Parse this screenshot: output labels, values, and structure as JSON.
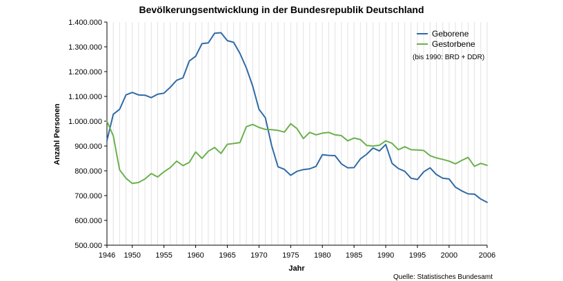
{
  "chart_data": {
    "type": "line",
    "title": "Bevölkerungsentwicklung in der Bundesrepublik Deutschland",
    "xlabel": "Jahr",
    "ylabel": "Anzahl Personen",
    "xlim": [
      1946,
      2006
    ],
    "ylim": [
      500000,
      1400000
    ],
    "x_ticks": [
      "1946",
      "1950",
      "1955",
      "1960",
      "1965",
      "1970",
      "1975",
      "1980",
      "1985",
      "1990",
      "1995",
      "2000",
      "2006"
    ],
    "x_tick_values": [
      1946,
      1950,
      1955,
      1960,
      1965,
      1970,
      1975,
      1980,
      1985,
      1990,
      1995,
      2000,
      2006
    ],
    "y_ticks": [
      "500.000",
      "600.000",
      "700.000",
      "800.000",
      "900.000",
      "1.000.000",
      "1.100.000",
      "1.200.000",
      "1.300.000",
      "1.400.000"
    ],
    "y_tick_values": [
      500000,
      600000,
      700000,
      800000,
      900000,
      1000000,
      1100000,
      1200000,
      1300000,
      1400000
    ],
    "grid": "vertical",
    "legend_position": "top-right",
    "note": "(bis 1990: BRD + DDR)",
    "source": "Quelle: Statistisches Bundesamt",
    "x": [
      1946,
      1947,
      1948,
      1949,
      1950,
      1951,
      1952,
      1953,
      1954,
      1955,
      1956,
      1957,
      1958,
      1959,
      1960,
      1961,
      1962,
      1963,
      1964,
      1965,
      1966,
      1967,
      1968,
      1969,
      1970,
      1971,
      1972,
      1973,
      1974,
      1975,
      1976,
      1977,
      1978,
      1979,
      1980,
      1981,
      1982,
      1983,
      1984,
      1985,
      1986,
      1987,
      1988,
      1989,
      1990,
      1991,
      1992,
      1993,
      1994,
      1995,
      1996,
      1997,
      1998,
      1999,
      2000,
      2001,
      2002,
      2003,
      2004,
      2005,
      2006
    ],
    "series": [
      {
        "name": "Geborene",
        "color": "#2e6aa6",
        "values": [
          922000,
          1028000,
          1048000,
          1106000,
          1116000,
          1106000,
          1105000,
          1095000,
          1109000,
          1113000,
          1137000,
          1165000,
          1175000,
          1243000,
          1262000,
          1313000,
          1316000,
          1355000,
          1357000,
          1325000,
          1318000,
          1273000,
          1215000,
          1142000,
          1048000,
          1014000,
          901000,
          816000,
          806000,
          782000,
          798000,
          805000,
          808000,
          818000,
          865000,
          862000,
          861000,
          828000,
          812000,
          813000,
          848000,
          867000,
          892000,
          880000,
          906000,
          830000,
          809000,
          798000,
          770000,
          765000,
          796000,
          812000,
          785000,
          770000,
          767000,
          734000,
          719000,
          707000,
          706000,
          686000,
          673000
        ]
      },
      {
        "name": "Gestorbene",
        "color": "#6ab04c",
        "values": [
          1000000,
          941000,
          804000,
          770000,
          749000,
          753000,
          767000,
          789000,
          775000,
          796000,
          813000,
          839000,
          821000,
          834000,
          876000,
          850000,
          879000,
          894000,
          870000,
          907000,
          910000,
          914000,
          978000,
          987000,
          975000,
          967000,
          966000,
          963000,
          956000,
          990000,
          970000,
          930000,
          955000,
          945000,
          952000,
          955000,
          945000,
          942000,
          921000,
          932000,
          926000,
          902000,
          900000,
          903000,
          921000,
          911000,
          885000,
          897000,
          885000,
          884000,
          882000,
          861000,
          852000,
          846000,
          839000,
          828000,
          842000,
          854000,
          818000,
          830000,
          822000
        ]
      }
    ]
  }
}
